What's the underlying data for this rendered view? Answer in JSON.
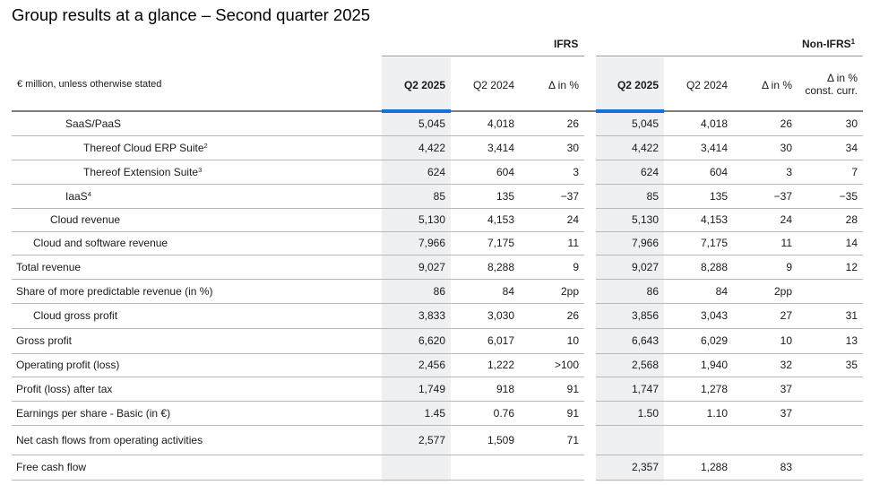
{
  "title": "Group results at a glance – Second quarter 2025",
  "groups": {
    "ifrs": "IFRS",
    "non_ifrs": "Non-IFRS",
    "non_ifrs_sup": "1"
  },
  "units": "€ million, unless otherwise stated",
  "columns": {
    "ifrs": [
      "Q2 2025",
      "Q2 2024",
      "Δ in %"
    ],
    "non_ifrs": [
      "Q2 2025",
      "Q2 2024",
      "Δ in %"
    ],
    "const_line1": "Δ in %",
    "const_line2": "const. curr."
  },
  "colors": {
    "accent": "#1b6fd8",
    "shade": "#eef0f1",
    "rule": "#b9b9b9"
  },
  "rows": [
    {
      "label": "SaaS/PaaS",
      "sup": "",
      "indent": 60,
      "h": 26,
      "ifrs": [
        "5,045",
        "4,018",
        "26"
      ],
      "non": [
        "5,045",
        "4,018",
        "26",
        "30"
      ]
    },
    {
      "label": "Thereof Cloud ERP Suite",
      "sup": "2",
      "indent": 80,
      "h": 27,
      "ifrs": [
        "4,422",
        "3,414",
        "30"
      ],
      "non": [
        "4,422",
        "3,414",
        "30",
        "34"
      ]
    },
    {
      "label": "Thereof Extension Suite",
      "sup": "3",
      "indent": 80,
      "h": 27,
      "ifrs": [
        "624",
        "604",
        "3"
      ],
      "non": [
        "624",
        "604",
        "3",
        "7"
      ]
    },
    {
      "label": "IaaS",
      "sup": "4",
      "indent": 60,
      "h": 27,
      "ifrs": [
        "85",
        "135",
        "−37"
      ],
      "non": [
        "85",
        "135",
        "−37",
        "−35"
      ]
    },
    {
      "label": "Cloud revenue",
      "sup": "",
      "indent": 43,
      "h": 26,
      "ifrs": [
        "5,130",
        "4,153",
        "24"
      ],
      "non": [
        "5,130",
        "4,153",
        "24",
        "28"
      ]
    },
    {
      "label": "Cloud and software revenue",
      "sup": "",
      "indent": 24,
      "h": 26,
      "ifrs": [
        "7,966",
        "7,175",
        "11"
      ],
      "non": [
        "7,966",
        "7,175",
        "11",
        "14"
      ]
    },
    {
      "label": "Total revenue",
      "sup": "",
      "indent": 5,
      "h": 27,
      "ifrs": [
        "9,027",
        "8,288",
        "9"
      ],
      "non": [
        "9,027",
        "8,288",
        "9",
        "12"
      ]
    },
    {
      "label": "Share of more predictable revenue (in %)",
      "sup": "",
      "indent": 5,
      "h": 27,
      "ifrs": [
        "86",
        "84",
        "2pp"
      ],
      "non": [
        "86",
        "84",
        "2pp",
        ""
      ]
    },
    {
      "label": "Cloud gross profit",
      "sup": "",
      "indent": 24,
      "h": 28,
      "ifrs": [
        "3,833",
        "3,030",
        "26"
      ],
      "non": [
        "3,856",
        "3,043",
        "27",
        "31"
      ]
    },
    {
      "label": "Gross profit",
      "sup": "",
      "indent": 5,
      "h": 28,
      "ifrs": [
        "6,620",
        "6,017",
        "10"
      ],
      "non": [
        "6,643",
        "6,029",
        "10",
        "13"
      ]
    },
    {
      "label": "Operating profit (loss)",
      "sup": "",
      "indent": 5,
      "h": 26,
      "ifrs": [
        "2,456",
        "1,222",
        ">100"
      ],
      "non": [
        "2,568",
        "1,940",
        "32",
        "35"
      ]
    },
    {
      "label": "Profit (loss) after tax",
      "sup": "",
      "indent": 5,
      "h": 27,
      "ifrs": [
        "1,749",
        "918",
        "91"
      ],
      "non": [
        "1,747",
        "1,278",
        "37",
        ""
      ]
    },
    {
      "label": "Earnings per share - Basic (in €)",
      "sup": "",
      "indent": 5,
      "h": 27,
      "ifrs": [
        "1.45",
        "0.76",
        "91"
      ],
      "non": [
        "1.50",
        "1.10",
        "37",
        ""
      ]
    },
    {
      "label": "Net cash flows from operating activities",
      "sup": "",
      "indent": 5,
      "h": 33,
      "ifrs": [
        "2,577",
        "1,509",
        "71"
      ],
      "non": [
        "",
        "",
        "",
        ""
      ]
    },
    {
      "label": "Free cash flow",
      "sup": "",
      "indent": 5,
      "h": 28,
      "ifrs": [
        "",
        "",
        ""
      ],
      "non": [
        "2,357",
        "1,288",
        "83",
        ""
      ]
    }
  ]
}
